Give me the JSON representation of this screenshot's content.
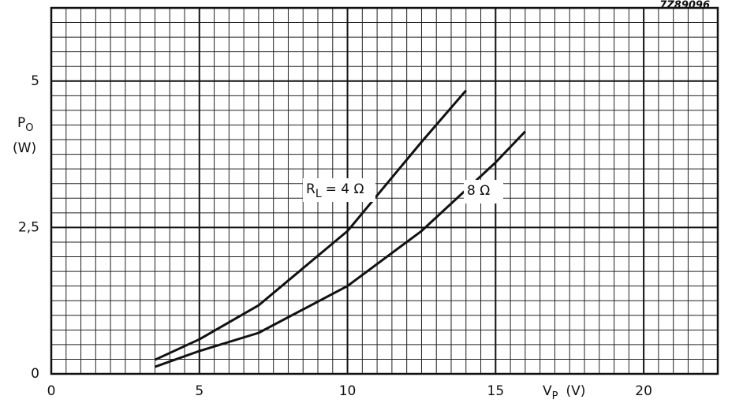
{
  "chart_data": {
    "type": "line",
    "code": "7Z89096",
    "ylabel": {
      "main": "P",
      "sub": "O",
      "unit": "(W)"
    },
    "xlabel": {
      "main": "V",
      "sub": "P",
      "unit": "(V)"
    },
    "xlim": [
      0,
      22.5
    ],
    "ylim": [
      0,
      6.25
    ],
    "xticks": [
      0,
      5,
      10,
      15,
      20
    ],
    "yticks": [
      0,
      {
        "value": 2.5,
        "label": "2,5"
      },
      5
    ],
    "grid": true,
    "series": [
      {
        "label": {
          "main": "R",
          "sub": "L",
          "rest": "= 4 Ω"
        },
        "color": "#111111",
        "x": [
          3.5,
          5,
          7,
          10,
          12.5,
          14
        ],
        "values": [
          0.24,
          0.59,
          1.17,
          2.44,
          3.96,
          4.84
        ]
      },
      {
        "label": {
          "main": "8 Ω"
        },
        "color": "#111111",
        "x": [
          3.5,
          5,
          7,
          10,
          12.5,
          15,
          16
        ],
        "values": [
          0.12,
          0.39,
          0.7,
          1.5,
          2.44,
          3.61,
          4.14
        ]
      }
    ]
  }
}
